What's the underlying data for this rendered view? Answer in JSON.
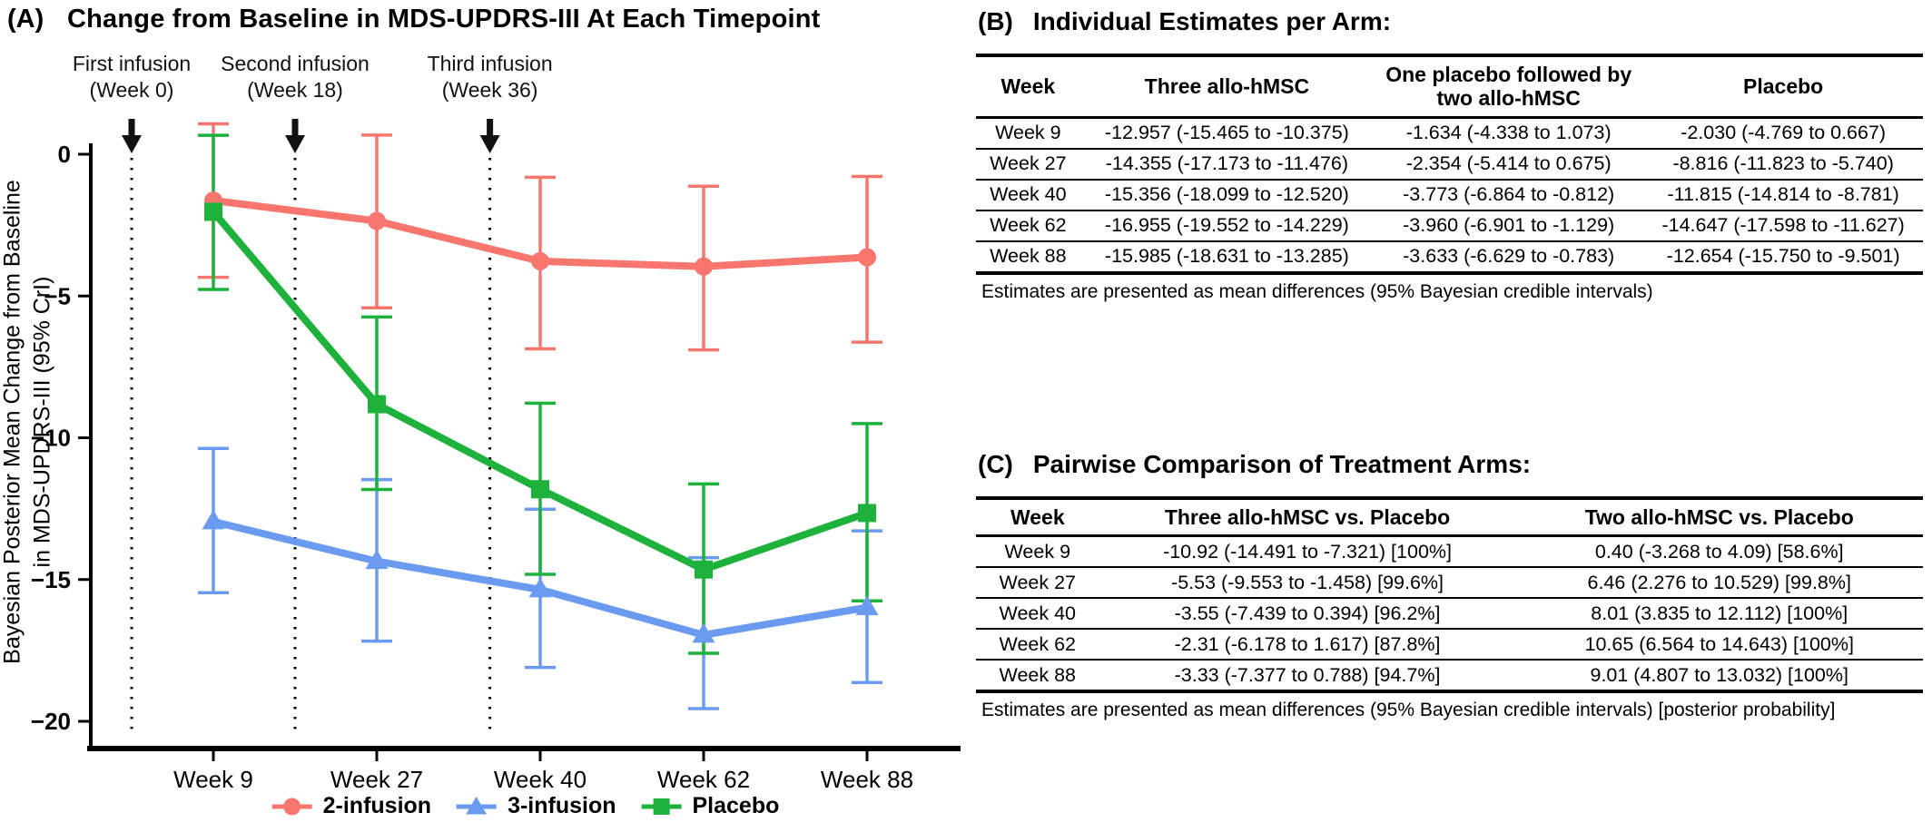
{
  "panel_a": {
    "label": "(A)",
    "title": "Change from Baseline in MDS-UPDRS-III At Each Timepoint"
  },
  "chart_data": {
    "type": "line",
    "title": "Change from Baseline in MDS-UPDRS-III At Each Timepoint",
    "ylabel_lines": [
      "Bayesian Posterior Mean Change from Baseline",
      "in MDS-UPDRS-III (95% CrI)"
    ],
    "categories": [
      "Week 9",
      "Week 27",
      "Week 40",
      "Week 62",
      "Week 88"
    ],
    "category_weeks": [
      9,
      27,
      40,
      62,
      88
    ],
    "yticks": [
      0,
      -5,
      -10,
      -15,
      -20
    ],
    "ylim": [
      -21,
      1.5
    ],
    "grid": false,
    "legend_position": "bottom",
    "infusion_annotations": [
      {
        "label": "First infusion",
        "sublabel": "(Week 0)",
        "week": 0
      },
      {
        "label": "Second infusion",
        "sublabel": "(Week 18)",
        "week": 18
      },
      {
        "label": "Third infusion",
        "sublabel": "(Week 36)",
        "week": 36
      }
    ],
    "series": [
      {
        "name": "2-infusion",
        "marker": "circle",
        "color": "#F8766D",
        "mean": [
          -1.634,
          -2.354,
          -3.773,
          -3.96,
          -3.633
        ],
        "ci_low": [
          -4.338,
          -5.414,
          -6.864,
          -6.901,
          -6.629
        ],
        "ci_high": [
          1.073,
          0.675,
          -0.812,
          -1.129,
          -0.783
        ]
      },
      {
        "name": "3-infusion",
        "marker": "triangle",
        "color": "#6B9BF1",
        "mean": [
          -12.957,
          -14.355,
          -15.356,
          -16.955,
          -15.985
        ],
        "ci_low": [
          -15.465,
          -17.173,
          -18.099,
          -19.552,
          -18.631
        ],
        "ci_high": [
          -10.375,
          -11.476,
          -12.52,
          -14.229,
          -13.285
        ]
      },
      {
        "name": "Placebo",
        "marker": "square",
        "color": "#1EB23C",
        "mean": [
          -2.03,
          -8.816,
          -11.815,
          -14.647,
          -12.654
        ],
        "ci_low": [
          -4.769,
          -11.823,
          -14.814,
          -17.598,
          -15.75
        ],
        "ci_high": [
          0.667,
          -5.74,
          -8.781,
          -11.627,
          -9.501
        ]
      }
    ]
  },
  "panel_b": {
    "label": "(B)",
    "title": "Individual Estimates per Arm:",
    "table": {
      "headers": [
        "Week",
        "Three allo-hMSC",
        "One placebo followed by two allo-hMSC",
        "Placebo"
      ],
      "rows": [
        [
          "Week 9",
          "-12.957 (-15.465 to -10.375)",
          "-1.634 (-4.338 to 1.073)",
          "-2.030 (-4.769 to 0.667)"
        ],
        [
          "Week 27",
          "-14.355 (-17.173 to -11.476)",
          "-2.354 (-5.414 to 0.675)",
          "-8.816 (-11.823 to -5.740)"
        ],
        [
          "Week 40",
          "-15.356 (-18.099 to -12.520)",
          "-3.773 (-6.864 to -0.812)",
          "-11.815 (-14.814 to -8.781)"
        ],
        [
          "Week 62",
          "-16.955 (-19.552 to -14.229)",
          "-3.960 (-6.901 to -1.129)",
          "-14.647 (-17.598 to -11.627)"
        ],
        [
          "Week 88",
          "-15.985 (-18.631 to -13.285)",
          "-3.633 (-6.629 to -0.783)",
          "-12.654 (-15.750 to -9.501)"
        ]
      ]
    },
    "footnote": "Estimates are presented as mean differences (95% Bayesian credible intervals)"
  },
  "panel_c": {
    "label": "(C)",
    "title": "Pairwise Comparison of Treatment Arms:",
    "table": {
      "headers": [
        "Week",
        "Three allo-hMSC vs. Placebo",
        "Two allo-hMSC vs. Placebo"
      ],
      "rows": [
        [
          "Week 9",
          "-10.92 (-14.491 to -7.321) [100%]",
          "0.40 (-3.268 to 4.09) [58.6%]"
        ],
        [
          "Week 27",
          "-5.53 (-9.553 to -1.458) [99.6%]",
          "6.46 (2.276 to 10.529) [99.8%]"
        ],
        [
          "Week 40",
          "-3.55 (-7.439 to 0.394) [96.2%]",
          "8.01 (3.835 to 12.112) [100%]"
        ],
        [
          "Week 62",
          "-2.31 (-6.178 to 1.617) [87.8%]",
          "10.65 (6.564 to 14.643) [100%]"
        ],
        [
          "Week 88",
          "-3.33 (-7.377 to 0.788) [94.7%]",
          "9.01 (4.807 to 13.032) [100%]"
        ]
      ]
    },
    "footnote": "Estimates are presented as mean differences (95% Bayesian credible intervals) [posterior probability]"
  }
}
